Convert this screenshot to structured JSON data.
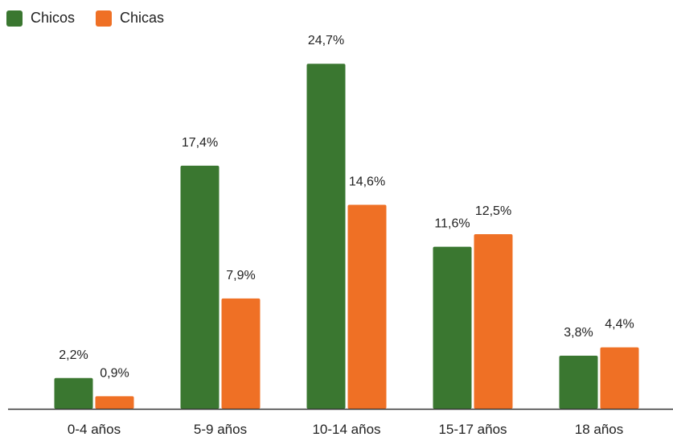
{
  "chart_data": {
    "type": "bar",
    "categories": [
      "0-4 años",
      "5-9 años",
      "10-14 años",
      "15-17 años",
      "18 años"
    ],
    "series": [
      {
        "name": "Chicos",
        "color": "#3a7730",
        "values": [
          2.2,
          17.4,
          24.7,
          11.6,
          3.8
        ],
        "labels": [
          "2,2%",
          "17,4%",
          "24,7%",
          "11,6%",
          "3,8%"
        ]
      },
      {
        "name": "Chicas",
        "color": "#ef7025",
        "values": [
          0.9,
          7.9,
          14.6,
          12.5,
          4.4
        ],
        "labels": [
          "0,9%",
          "7,9%",
          "14,6%",
          "12,5%",
          "4,4%"
        ]
      }
    ],
    "ylim": [
      0,
      25
    ],
    "legend_position": "top-left",
    "grid": false
  }
}
